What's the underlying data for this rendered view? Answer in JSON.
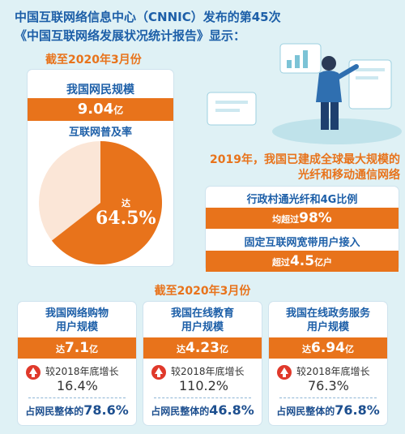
{
  "header": {
    "line1": "中国互联网络信息中心（CNNIC）发布的第45次",
    "line2": "《中国互联网络发展状况统计报告》显示："
  },
  "section1": {
    "date": "截至2020年3月份",
    "users_title": "我国网民规模",
    "users_value": "9.04",
    "users_unit": "亿",
    "pen_title": "互联网普及率",
    "pen_prefix": "达",
    "pen_value": "64.5%"
  },
  "statement": {
    "line1": "2019年，我国已建成全球最大规模的",
    "line2": "光纤和移动通信网络"
  },
  "broadband": {
    "t1": "行政村通光纤和4G比例",
    "b1_prefix": "均超过",
    "b1_value": "98%",
    "t2": "固定互联网宽带用户接入",
    "b2_prefix": "超过",
    "b2_value": "4.5",
    "b2_unit": "亿户"
  },
  "section2": {
    "date": "截至2020年3月份"
  },
  "cards": [
    {
      "title1": "我国网络购物",
      "title2": "用户规模",
      "prefix": "达",
      "value": "7.1",
      "unit": "亿",
      "inc_label": "较2018年底增长",
      "inc_value": "16.4%",
      "share_label": "占网民整体的",
      "share_value": "78.6%"
    },
    {
      "title1": "我国在线教育",
      "title2": "用户规模",
      "prefix": "达",
      "value": "4.23",
      "unit": "亿",
      "inc_label": "较2018年底增长",
      "inc_value": "110.2%",
      "share_label": "占网民整体的",
      "share_value": "46.8%"
    },
    {
      "title1": "我国在线政务服务",
      "title2": "用户规模",
      "prefix": "达",
      "value": "6.94",
      "unit": "亿",
      "inc_label": "较2018年底增长",
      "inc_value": "76.3%",
      "share_label": "占网民整体的",
      "share_value": "76.8%"
    }
  ],
  "colors": {
    "accent": "#e8731b",
    "pie_rest": "#fbe6d7",
    "title": "#1d5fa8",
    "increase": "#e0392b"
  },
  "icons": [
    "arrow-up-icon"
  ],
  "chart_data": {
    "type": "pie",
    "categories": [
      "互联网普及率",
      ""
    ],
    "values": [
      64.5,
      35.5
    ],
    "title": "互联网普及率"
  }
}
